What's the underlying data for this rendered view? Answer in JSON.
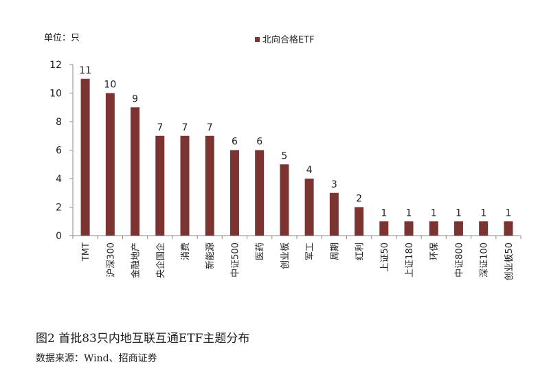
{
  "chart_data": {
    "type": "bar",
    "unit_label": "单位：只",
    "legend": {
      "label": "北向合格ETF",
      "placement": "top-center",
      "color": "#7b3431"
    },
    "categories": [
      "TMT",
      "沪深300",
      "金融地产",
      "央企国企",
      "消费",
      "新能源",
      "中证500",
      "医药",
      "创业板",
      "军工",
      "周期",
      "红利",
      "上证50",
      "上证180",
      "环保",
      "中证800",
      "深证100",
      "创业板50"
    ],
    "series": [
      {
        "name": "北向合格ETF",
        "values": [
          11,
          10,
          9,
          7,
          7,
          7,
          6,
          6,
          5,
          4,
          3,
          2,
          1,
          1,
          1,
          1,
          1,
          1
        ]
      }
    ],
    "y_ticks": [
      0,
      2,
      4,
      6,
      8,
      10,
      12
    ],
    "ylim": [
      0,
      12
    ],
    "grid": false,
    "data_labels": true
  },
  "caption": "图2  首批83只内地互联互通ETF主题分布",
  "source": "数据来源：Wind、招商证券"
}
